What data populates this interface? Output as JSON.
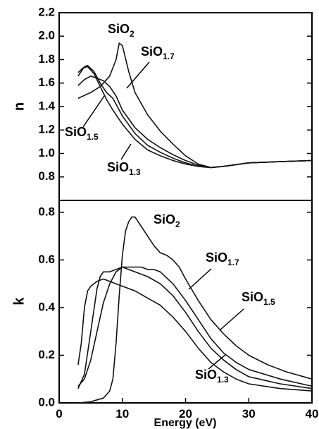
{
  "chart_data": [
    {
      "type": "line",
      "panel": "top",
      "ylabel": "n",
      "xlabel": "",
      "xlim": [
        0,
        40
      ],
      "ylim": [
        0.6,
        2.2
      ],
      "xticks": [
        "0",
        "10",
        "20",
        "30",
        "40"
      ],
      "yticks": [
        "0.8",
        "1.0",
        "1.2",
        "1.4",
        "1.6",
        "1.8",
        "2.0",
        "2.2"
      ],
      "grid": false,
      "series": [
        {
          "name": "SiO2",
          "x": [
            3.0,
            5.0,
            6.5,
            8.0,
            9.0,
            9.5,
            10.0,
            11.0,
            12.0,
            14.0,
            16.0,
            18.0,
            20.0,
            22.0,
            24.0,
            26.0,
            30.0,
            35.0,
            40.0
          ],
          "y": [
            1.47,
            1.52,
            1.57,
            1.66,
            1.8,
            1.94,
            1.92,
            1.7,
            1.52,
            1.33,
            1.19,
            1.08,
            0.98,
            0.91,
            0.88,
            0.89,
            0.92,
            0.93,
            0.94
          ]
        },
        {
          "name": "SiO1.7",
          "x": [
            3.0,
            4.0,
            5.0,
            6.0,
            7.0,
            8.0,
            9.0,
            10.0,
            12.0,
            14.0,
            16.0,
            18.0,
            20.0,
            22.0,
            24.0,
            26.0,
            30.0,
            35.0,
            40.0
          ],
          "y": [
            1.58,
            1.63,
            1.66,
            1.64,
            1.62,
            1.57,
            1.49,
            1.37,
            1.22,
            1.12,
            1.05,
            0.99,
            0.94,
            0.9,
            0.88,
            0.89,
            0.92,
            0.93,
            0.94
          ]
        },
        {
          "name": "SiO1.5",
          "x": [
            3.0,
            4.0,
            4.5,
            5.5,
            6.5,
            7.5,
            8.5,
            10.0,
            12.0,
            14.0,
            16.0,
            18.0,
            20.0,
            22.0,
            24.0,
            26.0,
            30.0,
            35.0,
            40.0
          ],
          "y": [
            1.66,
            1.74,
            1.75,
            1.7,
            1.6,
            1.52,
            1.47,
            1.32,
            1.17,
            1.07,
            1.01,
            0.96,
            0.92,
            0.89,
            0.88,
            0.89,
            0.92,
            0.93,
            0.94
          ]
        },
        {
          "name": "SiO1.3",
          "x": [
            3.0,
            3.8,
            4.5,
            5.5,
            6.5,
            7.5,
            8.5,
            10.0,
            12.0,
            14.0,
            16.0,
            18.0,
            20.0,
            22.0,
            24.0,
            26.0,
            30.0,
            35.0,
            40.0
          ],
          "y": [
            1.69,
            1.73,
            1.74,
            1.68,
            1.57,
            1.46,
            1.37,
            1.25,
            1.12,
            1.03,
            0.98,
            0.94,
            0.91,
            0.89,
            0.88,
            0.89,
            0.92,
            0.93,
            0.94
          ]
        }
      ]
    },
    {
      "type": "line",
      "panel": "bottom",
      "ylabel": "k",
      "xlabel": "Energy (eV)",
      "xlim": [
        0,
        40
      ],
      "ylim": [
        0.0,
        0.85
      ],
      "xticks": [
        "0",
        "10",
        "20",
        "30",
        "40"
      ],
      "yticks": [
        "0.0",
        "0.2",
        "0.4",
        "0.6",
        "0.8"
      ],
      "grid": false,
      "series": [
        {
          "name": "SiO2",
          "x": [
            3.0,
            5.0,
            7.0,
            8.0,
            8.5,
            9.0,
            9.5,
            10.0,
            10.5,
            11.0,
            11.5,
            12.0,
            13.0,
            14.0,
            15.0,
            16.0,
            17.0,
            18.0,
            19.0,
            20.0,
            22.0,
            24.0,
            26.0,
            28.0,
            30.0,
            33.0,
            36.0,
            40.0
          ],
          "y": [
            0.0,
            0.005,
            0.02,
            0.05,
            0.1,
            0.25,
            0.45,
            0.62,
            0.72,
            0.76,
            0.78,
            0.78,
            0.74,
            0.7,
            0.66,
            0.63,
            0.62,
            0.6,
            0.57,
            0.52,
            0.43,
            0.35,
            0.29,
            0.24,
            0.2,
            0.16,
            0.13,
            0.1
          ]
        },
        {
          "name": "SiO1.7",
          "x": [
            3.0,
            4.0,
            5.0,
            6.0,
            7.0,
            8.0,
            9.0,
            10.0,
            11.0,
            12.0,
            13.0,
            14.0,
            15.0,
            16.0,
            18.0,
            20.0,
            22.0,
            24.0,
            26.0,
            28.0,
            30.0,
            35.0,
            40.0
          ],
          "y": [
            0.07,
            0.1,
            0.18,
            0.3,
            0.42,
            0.5,
            0.55,
            0.57,
            0.57,
            0.57,
            0.57,
            0.56,
            0.56,
            0.55,
            0.5,
            0.43,
            0.35,
            0.27,
            0.21,
            0.17,
            0.14,
            0.1,
            0.07
          ]
        },
        {
          "name": "SiO1.5",
          "x": [
            3.0,
            4.0,
            5.0,
            6.0,
            6.5,
            7.0,
            8.0,
            9.0,
            10.0,
            11.0,
            12.0,
            14.0,
            16.0,
            18.0,
            20.0,
            22.0,
            24.0,
            26.0,
            28.0,
            30.0,
            35.0,
            40.0
          ],
          "y": [
            0.06,
            0.12,
            0.3,
            0.48,
            0.53,
            0.55,
            0.55,
            0.56,
            0.57,
            0.56,
            0.55,
            0.53,
            0.5,
            0.45,
            0.38,
            0.3,
            0.23,
            0.18,
            0.14,
            0.11,
            0.08,
            0.06
          ]
        },
        {
          "name": "SiO1.3",
          "x": [
            3.0,
            3.5,
            4.0,
            4.5,
            5.0,
            6.0,
            7.0,
            8.0,
            9.0,
            10.0,
            12.0,
            14.0,
            16.0,
            18.0,
            20.0,
            22.0,
            24.0,
            26.0,
            28.0,
            30.0,
            35.0,
            40.0
          ],
          "y": [
            0.16,
            0.25,
            0.4,
            0.47,
            0.49,
            0.51,
            0.52,
            0.51,
            0.5,
            0.49,
            0.47,
            0.44,
            0.41,
            0.36,
            0.3,
            0.23,
            0.17,
            0.13,
            0.1,
            0.08,
            0.06,
            0.05
          ]
        }
      ]
    }
  ],
  "annotations": {
    "top": [
      {
        "base": "SiO",
        "sub": "2"
      },
      {
        "base": "SiO",
        "sub": "1.7"
      },
      {
        "base": "SiO",
        "sub": "1.5"
      },
      {
        "base": "SiO",
        "sub": "1.3"
      }
    ],
    "bottom": [
      {
        "base": "SiO",
        "sub": "2"
      },
      {
        "base": "SiO",
        "sub": "1.7"
      },
      {
        "base": "SiO",
        "sub": "1.5"
      },
      {
        "base": "SiO",
        "sub": "1.3"
      }
    ]
  },
  "colors": {
    "line": "#111111",
    "axis": "#000000",
    "background": "#ffffff"
  }
}
